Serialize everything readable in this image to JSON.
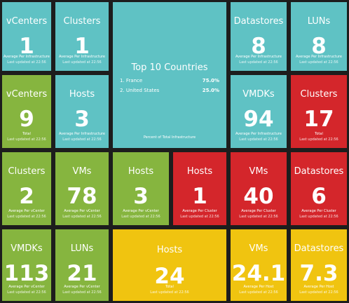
{
  "tiles": [
    {
      "id": "vcenters-avg",
      "title": "vCenters",
      "value": "1",
      "sub": "Average Per Infrastructure",
      "updated": "Last updated at 22:56"
    },
    {
      "id": "clusters-avg",
      "title": "Clusters",
      "value": "1",
      "sub": "Average Per Infrastructure",
      "updated": "Last updated at 22:56"
    },
    {
      "id": "datastores-avg",
      "title": "Datastores",
      "value": "8",
      "sub": "Average Per Infrastructure",
      "updated": "Last updated at 22:56"
    },
    {
      "id": "luns-avg",
      "title": "LUNs",
      "value": "8",
      "sub": "Average Per Infrastructure",
      "updated": "Last updated at 22:56"
    },
    {
      "id": "vcenters-total",
      "title": "vCenters",
      "value": "9",
      "sub": "Total",
      "updated": "Last updated at 22:56"
    },
    {
      "id": "hosts-avg-infra",
      "title": "Hosts",
      "value": "3",
      "sub": "Average Per Infrastructure",
      "updated": "Last updated at 22:56"
    },
    {
      "id": "vmdks-avg",
      "title": "VMDKs",
      "value": "94",
      "sub": "Average Per Infrastructure",
      "updated": "Last updated at 22:56"
    },
    {
      "id": "clusters-total",
      "title": "Clusters",
      "value": "17",
      "sub": "Total",
      "updated": "Last updated at 22:56"
    },
    {
      "id": "clusters-per-vcenter",
      "title": "Clusters",
      "value": "2",
      "sub": "Average Per vCenter",
      "updated": "Last updated at 22:56"
    },
    {
      "id": "vms-per-vcenter",
      "title": "VMs",
      "value": "78",
      "sub": "Average Per vCenter",
      "updated": "Last updated at 22:56"
    },
    {
      "id": "hosts-per-vcenter",
      "title": "Hosts",
      "value": "3",
      "sub": "Average Per vCenter",
      "updated": "Last updated at 22:56"
    },
    {
      "id": "hosts-per-cluster",
      "title": "Hosts",
      "value": "1",
      "sub": "Average Per Cluster",
      "updated": "Last updated at 22:56"
    },
    {
      "id": "vms-per-cluster",
      "title": "VMs",
      "value": "40",
      "sub": "Average Per Cluster",
      "updated": "Last updated at 22:56"
    },
    {
      "id": "datastores-per-cluster",
      "title": "Datastores",
      "value": "6",
      "sub": "Average Per Cluster",
      "updated": "Last updated at 22:56"
    },
    {
      "id": "vmdks-per-vcenter",
      "title": "VMDKs",
      "value": "113",
      "sub": "Average Per vCenter",
      "updated": "Last updated at 22:56"
    },
    {
      "id": "luns-per-vcenter",
      "title": "LUNs",
      "value": "21",
      "sub": "Average Per vCenter",
      "updated": "Last updated at 22:56"
    },
    {
      "id": "hosts-total",
      "title": "Hosts",
      "value": "24",
      "sub": "Total",
      "updated": "Last updated at 22:56"
    },
    {
      "id": "vms-per-host",
      "title": "VMs",
      "value": "24.1",
      "sub": "Average Per Host",
      "updated": "Last updated at 22:56"
    },
    {
      "id": "datastores-per-host",
      "title": "Datastores",
      "value": "7.3",
      "sub": "Average Per Host",
      "updated": "Last updated at 22:56"
    }
  ],
  "top_countries": {
    "title": "Top 10 Countries",
    "items": [
      {
        "label": "1. France",
        "pct": "75.0%"
      },
      {
        "label": "2. United States",
        "pct": "25.0%"
      }
    ],
    "sub": "Percent of Total Infrastructure"
  },
  "colors": {
    "teal": "#5fc2c4",
    "green": "#86b53f",
    "red": "#d4262b",
    "yellow": "#f0c410",
    "background": "#1d1d1d"
  }
}
